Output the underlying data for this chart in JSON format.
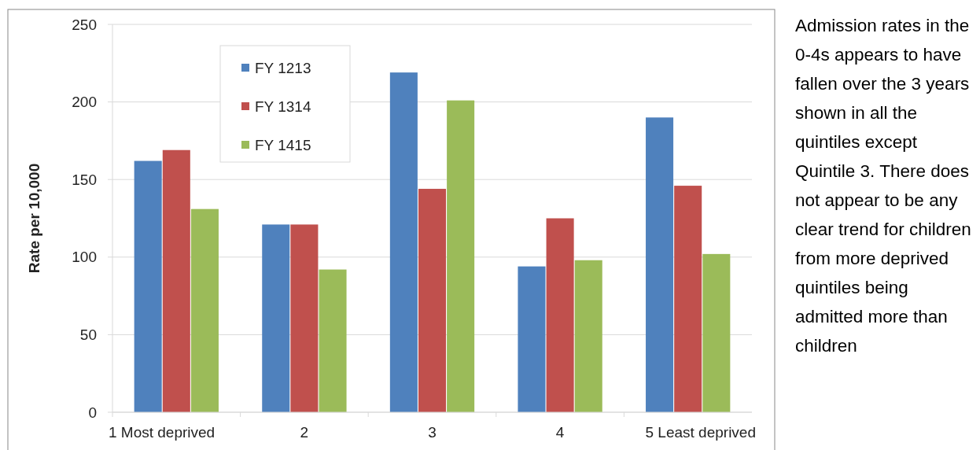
{
  "chart_data": {
    "type": "bar",
    "ylabel": "Rate per 10,000",
    "categories": [
      "1 Most deprived",
      "2",
      "3",
      "4",
      "5 Least deprived"
    ],
    "series": [
      {
        "name": "FY 1213",
        "color": "#4f81bd",
        "values": [
          162,
          121,
          219,
          94,
          190
        ]
      },
      {
        "name": "FY 1314",
        "color": "#c0504d",
        "values": [
          169,
          121,
          144,
          125,
          146
        ]
      },
      {
        "name": "FY 1415",
        "color": "#9bbb59",
        "values": [
          131,
          92,
          201,
          98,
          102
        ]
      }
    ],
    "ylim": [
      0,
      250
    ],
    "yticks": [
      0,
      50,
      100,
      150,
      200,
      250
    ],
    "grid": "y",
    "legend": "top left",
    "annotations": [
      "Admission rates in the 0-4s appears to have fallen over the 3 years shown in all the quintiles except Quintile 3. There does not appear to be any clear trend for children from more deprived quintiles being admitted more than children"
    ]
  }
}
